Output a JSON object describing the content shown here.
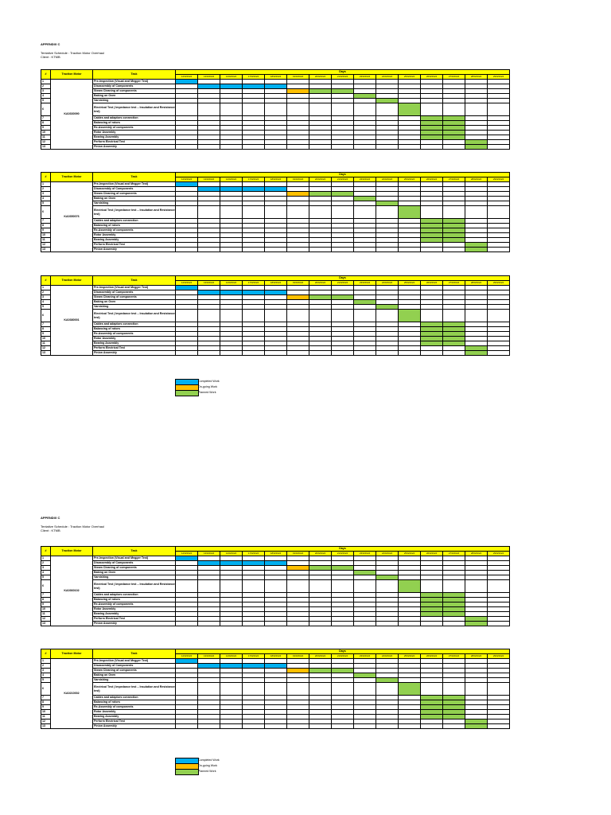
{
  "appendix": "APPENDIX C",
  "title": "Tentative Schedule : Traction Motor Overhaul",
  "client": "Client : KTMB",
  "headers": {
    "num": "#",
    "motor": "Traction Motor",
    "task": "Task",
    "days": "Days"
  },
  "dates": [
    "12/9/2024",
    "13/9/2024",
    "14/9/2024",
    "17/9/2024",
    "18/9/2024",
    "19/9/2024",
    "20/9/2024",
    "21/9/2024",
    "23/9/2024",
    "24/9/2024",
    "25/9/2024",
    "26/9/2024",
    "27/9/2024",
    "28/9/2024",
    "29/9/2024"
  ],
  "tasks": [
    {
      "n": "1",
      "label": "Pre-Inspection (Visual and Megger Test)",
      "cells": [
        [
          "completed",
          0,
          1
        ]
      ]
    },
    {
      "n": "2",
      "label": "Disassembly of Components",
      "cells": [
        [
          "completed",
          1,
          5
        ]
      ]
    },
    {
      "n": "3",
      "label": "Steam Cleaning of components",
      "cells": [
        [
          "ongoing",
          5,
          6
        ],
        [
          "planned",
          6,
          8
        ]
      ]
    },
    {
      "n": "4",
      "label": "Baking on Oven",
      "cells": [
        [
          "planned",
          8,
          9
        ]
      ]
    },
    {
      "n": "5",
      "label": "Varnishing",
      "cells": [
        [
          "planned",
          9,
          10
        ]
      ]
    },
    {
      "n": "6",
      "label": "Electrical Test ( Impedance test – Insulation and Resistance test)",
      "cells": [
        [
          "planned",
          10,
          11
        ]
      ],
      "tall": true
    },
    {
      "n": "7",
      "label": "Cables and adaptors connection",
      "cells": [
        [
          "planned",
          11,
          13
        ]
      ]
    },
    {
      "n": "8",
      "label": "Balancing of rotors",
      "cells": [
        [
          "planned",
          11,
          13
        ]
      ]
    },
    {
      "n": "9",
      "label": "Re-Assembly of components",
      "cells": [
        [
          "planned",
          11,
          13
        ]
      ]
    },
    {
      "n": "10",
      "label": "Rotor Assembly",
      "cells": [
        [
          "planned",
          11,
          13
        ]
      ]
    },
    {
      "n": "11",
      "label": "Bearing Assembly",
      "cells": [
        [
          "planned",
          11,
          13
        ]
      ]
    },
    {
      "n": "12",
      "label": "Perform Electrical Test",
      "cells": [
        [
          "planned",
          13,
          14
        ]
      ]
    },
    {
      "n": "13",
      "label": "Pinion Assembly",
      "cells": [
        [
          "planned",
          13,
          14
        ]
      ]
    }
  ],
  "motors": [
    "KA0330090",
    "KA0350076",
    "KA0380001",
    "KA0360102",
    "KA0210002"
  ],
  "legend": [
    {
      "label": "Completed Work",
      "color": "#00b0f0"
    },
    {
      "label": "On-going Work",
      "color": "#ffc000"
    },
    {
      "label": "Planned Work",
      "color": "#92d050"
    }
  ]
}
